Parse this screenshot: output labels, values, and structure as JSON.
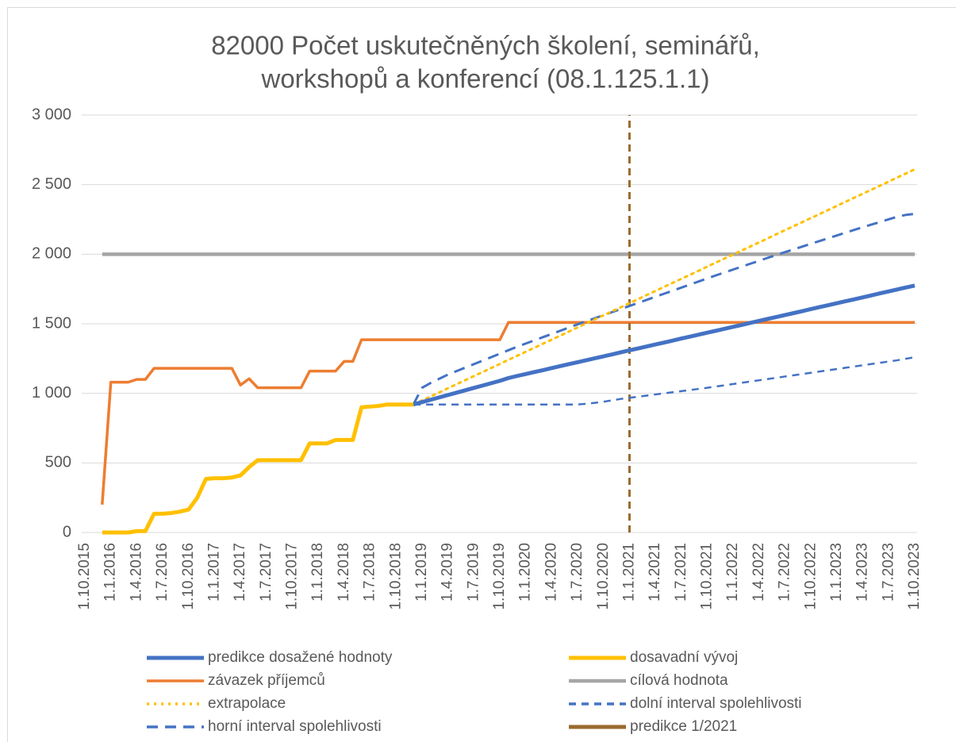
{
  "chart_data": {
    "type": "line",
    "title": [
      "82000 Počet uskutečněných školení, seminářů,",
      "workshopů a konferencí (08.1.125.1.1)"
    ],
    "categories": [
      "1.10.2015",
      null,
      null,
      "1.1.2016",
      null,
      null,
      "1.4.2016",
      null,
      null,
      "1.7.2016",
      null,
      null,
      "1.10.2016",
      null,
      null,
      "1.1.2017",
      null,
      null,
      "1.4.2017",
      null,
      null,
      "1.7.2017",
      null,
      null,
      "1.10.2017",
      null,
      null,
      "1.1.2018",
      null,
      null,
      "1.4.2018",
      null,
      null,
      "1.7.2018",
      null,
      null,
      "1.10.2018",
      null,
      null,
      "1.1.2019",
      null,
      null,
      "1.4.2019",
      null,
      null,
      "1.7.2019",
      null,
      null,
      "1.10.2019",
      null,
      null,
      "1.1.2020",
      null,
      null,
      "1.4.2020",
      null,
      null,
      "1.7.2020",
      null,
      null,
      "1.10.2020",
      null,
      null,
      "1.1.2021",
      null,
      null,
      "1.4.2021",
      null,
      null,
      "1.7.2021",
      null,
      null,
      "1.10.2021",
      null,
      null,
      "1.1.2022",
      null,
      null,
      "1.4.2022",
      null,
      null,
      "1.7.2022",
      null,
      null,
      "1.10.2022",
      null,
      null,
      "1.1.2023",
      null,
      null,
      "1.4.2023",
      null,
      null,
      "1.7.2023",
      null,
      null,
      "1.10.2023"
    ],
    "ylim": [
      0,
      3000
    ],
    "yticks": [
      0,
      500,
      {
        "value": 1000,
        "label": "1 000"
      },
      {
        "value": 1500,
        "label": "1 500"
      },
      {
        "value": 2000,
        "label": "2 000"
      },
      {
        "value": 2500,
        "label": "2 500"
      },
      {
        "value": 3000,
        "label": "3 000"
      }
    ],
    "grid": true,
    "legend": "bottom",
    "series": [
      {
        "name": "predikce dosažené hodnoty",
        "color": "#4472C4",
        "style": "solid",
        "width": 5,
        "values": [
          null,
          null,
          null,
          null,
          null,
          null,
          null,
          null,
          null,
          null,
          null,
          null,
          null,
          null,
          null,
          null,
          null,
          null,
          null,
          null,
          null,
          null,
          null,
          null,
          null,
          null,
          null,
          null,
          null,
          null,
          null,
          null,
          null,
          null,
          null,
          null,
          null,
          null,
          920,
          937,
          954,
          971,
          988,
          1005,
          1022,
          1039,
          1056,
          1073,
          1090,
          1110,
          1125,
          1139,
          1153,
          1167,
          1182,
          1196,
          1210,
          1224,
          1238,
          1252,
          1266,
          1280,
          1295,
          1309,
          1323,
          1337,
          1351,
          1365,
          1379,
          1394,
          1408,
          1422,
          1436,
          1450,
          1464,
          1478,
          1492,
          1507,
          1521,
          1535,
          1549,
          1563,
          1577,
          1591,
          1606,
          1620,
          1634,
          1648,
          1662,
          1676,
          1690,
          1704,
          1719,
          1733,
          1747,
          1761,
          1775
        ]
      },
      {
        "name": "dosavadní vývoj",
        "color": "#FFC000",
        "style": "solid",
        "width": 5,
        "values": [
          null,
          null,
          0,
          0,
          0,
          0,
          10,
          10,
          135,
          135,
          140,
          150,
          165,
          250,
          385,
          390,
          390,
          395,
          410,
          470,
          520,
          520,
          520,
          520,
          520,
          520,
          640,
          640,
          640,
          665,
          665,
          665,
          900,
          905,
          910,
          920,
          920,
          920,
          920,
          null,
          null,
          null,
          null,
          null,
          null,
          null,
          null,
          null,
          null,
          null,
          null,
          null,
          null,
          null,
          null,
          null,
          null,
          null,
          null,
          null,
          null,
          null,
          null,
          null,
          null,
          null,
          null,
          null,
          null,
          null,
          null,
          null,
          null,
          null,
          null,
          null,
          null,
          null,
          null,
          null,
          null,
          null,
          null,
          null,
          null,
          null,
          null,
          null,
          null,
          null,
          null,
          null,
          null,
          null,
          null,
          null,
          null
        ]
      },
      {
        "name": "závazek příjemců",
        "color": "#ED7D31",
        "style": "solid",
        "width": 3.5,
        "values": [
          null,
          null,
          200,
          1080,
          1080,
          1080,
          1100,
          1100,
          1180,
          1180,
          1180,
          1180,
          1180,
          1180,
          1180,
          1180,
          1180,
          1180,
          1060,
          1105,
          1040,
          1040,
          1040,
          1040,
          1040,
          1040,
          1160,
          1160,
          1160,
          1160,
          1230,
          1230,
          1385,
          1385,
          1385,
          1385,
          1385,
          1385,
          1385,
          1385,
          1385,
          1385,
          1385,
          1385,
          1385,
          1385,
          1385,
          1385,
          1385,
          1510,
          1510,
          1510,
          1510,
          1510,
          1510,
          1510,
          1510,
          1510,
          1510,
          1510,
          1510,
          1510,
          1510,
          1510,
          1510,
          1510,
          1510,
          1510,
          1510,
          1510,
          1510,
          1510,
          1510,
          1510,
          1510,
          1510,
          1510,
          1510,
          1510,
          1510,
          1510,
          1510,
          1510,
          1510,
          1510,
          1510,
          1510,
          1510,
          1510,
          1510,
          1510,
          1510,
          1510,
          1510,
          1510,
          1510,
          1510
        ]
      },
      {
        "name": "cílová hodnota",
        "color": "#A5A5A5",
        "style": "solid",
        "width": 4.5,
        "values": [
          null,
          null,
          2000,
          2000,
          2000,
          2000,
          2000,
          2000,
          2000,
          2000,
          2000,
          2000,
          2000,
          2000,
          2000,
          2000,
          2000,
          2000,
          2000,
          2000,
          2000,
          2000,
          2000,
          2000,
          2000,
          2000,
          2000,
          2000,
          2000,
          2000,
          2000,
          2000,
          2000,
          2000,
          2000,
          2000,
          2000,
          2000,
          2000,
          2000,
          2000,
          2000,
          2000,
          2000,
          2000,
          2000,
          2000,
          2000,
          2000,
          2000,
          2000,
          2000,
          2000,
          2000,
          2000,
          2000,
          2000,
          2000,
          2000,
          2000,
          2000,
          2000,
          2000,
          2000,
          2000,
          2000,
          2000,
          2000,
          2000,
          2000,
          2000,
          2000,
          2000,
          2000,
          2000,
          2000,
          2000,
          2000,
          2000,
          2000,
          2000,
          2000,
          2000,
          2000,
          2000,
          2000,
          2000,
          2000,
          2000,
          2000,
          2000,
          2000,
          2000,
          2000,
          2000,
          2000,
          2000
        ]
      },
      {
        "name": "extrapolace",
        "color": "#FFC000",
        "style": "dot",
        "width": 3,
        "values": [
          null,
          null,
          null,
          null,
          null,
          null,
          null,
          null,
          null,
          null,
          null,
          null,
          null,
          null,
          null,
          null,
          null,
          null,
          null,
          null,
          null,
          null,
          null,
          null,
          null,
          null,
          null,
          null,
          null,
          null,
          null,
          null,
          null,
          null,
          null,
          null,
          null,
          null,
          920,
          949,
          978,
          1007,
          1037,
          1066,
          1095,
          1124,
          1153,
          1182,
          1211,
          1241,
          1270,
          1299,
          1328,
          1357,
          1386,
          1415,
          1444,
          1474,
          1503,
          1532,
          1561,
          1590,
          1619,
          1648,
          1677,
          1707,
          1736,
          1765,
          1794,
          1823,
          1852,
          1881,
          1911,
          1940,
          1969,
          1998,
          2027,
          2056,
          2085,
          2114,
          2144,
          2173,
          2202,
          2231,
          2260,
          2289,
          2318,
          2348,
          2377,
          2406,
          2435,
          2464,
          2493,
          2522,
          2552,
          2581,
          2610
        ]
      },
      {
        "name": "dolní interval spolehlivosti",
        "color": "#4472C4",
        "style": "dash",
        "width": 2.5,
        "values": [
          null,
          null,
          null,
          null,
          null,
          null,
          null,
          null,
          null,
          null,
          null,
          null,
          null,
          null,
          null,
          null,
          null,
          null,
          null,
          null,
          null,
          null,
          null,
          null,
          null,
          null,
          null,
          null,
          null,
          null,
          null,
          null,
          null,
          null,
          null,
          null,
          null,
          null,
          920,
          920,
          920,
          920,
          920,
          920,
          920,
          920,
          920,
          920,
          920,
          920,
          920,
          920,
          920,
          920,
          920,
          920,
          920,
          920,
          925,
          932,
          940,
          950,
          960,
          968,
          976,
          984,
          992,
          1000,
          1008,
          1016,
          1024,
          1032,
          1040,
          1049,
          1058,
          1067,
          1076,
          1085,
          1094,
          1103,
          1112,
          1121,
          1130,
          1139,
          1148,
          1157,
          1166,
          1175,
          1184,
          1193,
          1202,
          1211,
          1220,
          1229,
          1238,
          1249,
          1260
        ]
      },
      {
        "name": "horní interval spolehlivosti",
        "color": "#4472C4",
        "style": "longdash",
        "width": 3,
        "values": [
          null,
          null,
          null,
          null,
          null,
          null,
          null,
          null,
          null,
          null,
          null,
          null,
          null,
          null,
          null,
          null,
          null,
          null,
          null,
          null,
          null,
          null,
          null,
          null,
          null,
          null,
          null,
          null,
          null,
          null,
          null,
          null,
          null,
          null,
          null,
          null,
          null,
          null,
          920,
          1040,
          1075,
          1105,
          1135,
          1160,
          1185,
          1210,
          1235,
          1260,
          1285,
          1310,
          1335,
          1358,
          1381,
          1404,
          1427,
          1450,
          1473,
          1496,
          1518,
          1540,
          1562,
          1584,
          1606,
          1628,
          1650,
          1672,
          1694,
          1716,
          1738,
          1760,
          1782,
          1804,
          1826,
          1848,
          1869,
          1890,
          1911,
          1932,
          1953,
          1974,
          1995,
          2015,
          2035,
          2055,
          2075,
          2095,
          2115,
          2135,
          2155,
          2175,
          2194,
          2213,
          2232,
          2251,
          2270,
          2283,
          2290
        ]
      },
      {
        "name": "predikce 1/2021",
        "color": "#9A6A2E",
        "style": "vline",
        "width": 3,
        "values": [
          null,
          null,
          null,
          null,
          null,
          null,
          null,
          null,
          null,
          null,
          null,
          null,
          null,
          null,
          null,
          null,
          null,
          null,
          null,
          null,
          null,
          null,
          null,
          null,
          null,
          null,
          null,
          null,
          null,
          null,
          null,
          null,
          null,
          null,
          null,
          null,
          null,
          null,
          null,
          null,
          null,
          null,
          null,
          null,
          null,
          null,
          null,
          null,
          null,
          null,
          null,
          null,
          null,
          null,
          null,
          null,
          null,
          null,
          null,
          null,
          null,
          null,
          null,
          3000,
          null,
          null,
          null,
          null,
          null,
          null,
          null,
          null,
          null,
          null,
          null,
          null,
          null,
          null,
          null,
          null,
          null,
          null,
          null,
          null,
          null,
          null,
          null,
          null,
          null,
          null,
          null,
          null,
          null,
          null,
          null,
          null,
          null
        ]
      }
    ]
  }
}
